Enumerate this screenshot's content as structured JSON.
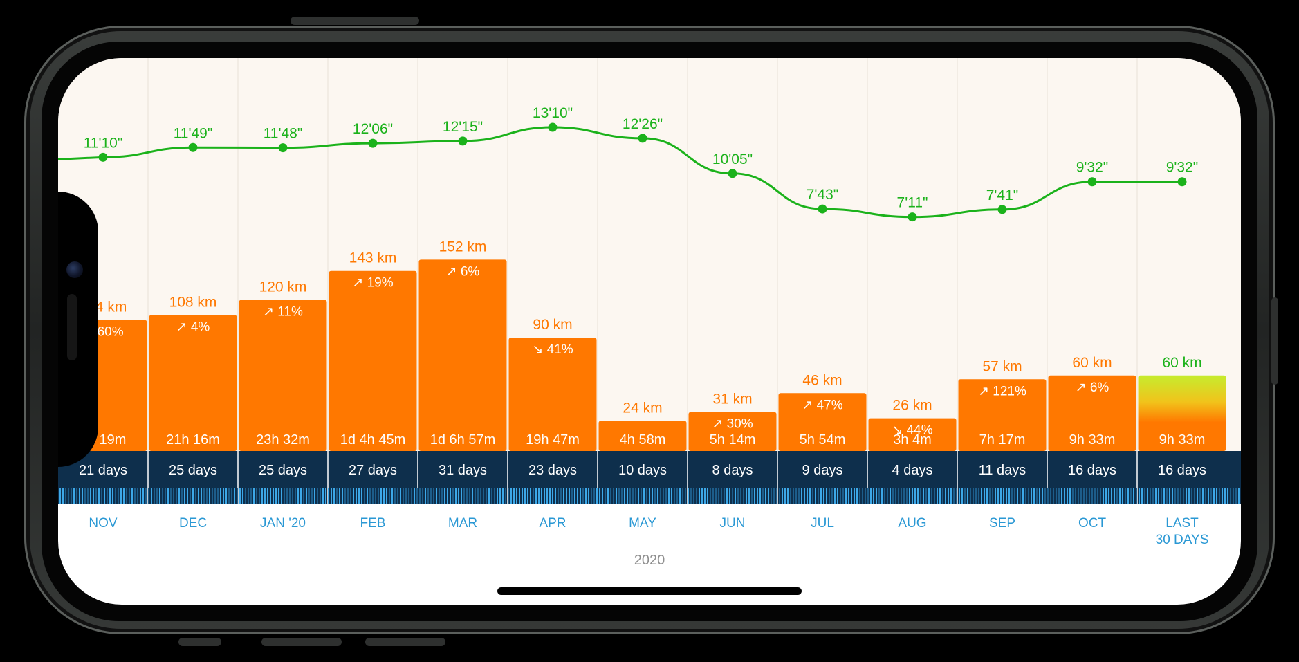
{
  "chart_data": {
    "type": "bar",
    "categories": [
      "NOV",
      "DEC",
      "JAN '20",
      "FEB",
      "MAR",
      "APR",
      "MAY",
      "JUN",
      "JUL",
      "AUG",
      "SEP",
      "OCT",
      "LAST 30 DAYS"
    ],
    "category_lines": [
      [
        "NOV"
      ],
      [
        "DEC"
      ],
      [
        "JAN '20"
      ],
      [
        "FEB"
      ],
      [
        "MAR"
      ],
      [
        "APR"
      ],
      [
        "MAY"
      ],
      [
        "JUN"
      ],
      [
        "JUL"
      ],
      [
        "AUG"
      ],
      [
        "SEP"
      ],
      [
        "OCT"
      ],
      [
        "LAST",
        "30 DAYS"
      ]
    ],
    "distance_km": [
      104,
      108,
      120,
      143,
      152,
      90,
      24,
      31,
      46,
      26,
      57,
      60,
      60
    ],
    "distance_labels": [
      "104 km",
      "108 km",
      "120 km",
      "143 km",
      "152 km",
      "90 km",
      "24 km",
      "31 km",
      "46 km",
      "26 km",
      "57 km",
      "60 km",
      "60 km"
    ],
    "change_labels": [
      "↗ 60%",
      "↗ 4%",
      "↗ 11%",
      "↗ 19%",
      "↗ 6%",
      "↘ 41%",
      "",
      "↗ 30%",
      "↗ 47%",
      "↘ 44%",
      "↗ 121%",
      "↗ 6%",
      ""
    ],
    "durations": [
      "9h 19m",
      "21h 16m",
      "23h 32m",
      "1d 4h 45m",
      "1d 6h 57m",
      "19h 47m",
      "4h 58m",
      "5h 14m",
      "5h 54m",
      "3h 4m",
      "7h 17m",
      "9h 33m",
      "9h 33m"
    ],
    "active_days": [
      "21 days",
      "25 days",
      "25 days",
      "27 days",
      "31 days",
      "23 days",
      "10 days",
      "8 days",
      "9 days",
      "4 days",
      "11 days",
      "16 days",
      "16 days"
    ],
    "pace_labels": [
      "11'10\"",
      "11'49\"",
      "11'48\"",
      "12'06\"",
      "12'15\"",
      "13'10\"",
      "12'26\"",
      "10'05\"",
      "7'43\"",
      "7'11\"",
      "7'41\"",
      "9'32\"",
      "9'32\""
    ],
    "pace_seconds": [
      670,
      709,
      708,
      726,
      735,
      790,
      746,
      605,
      463,
      431,
      461,
      572,
      572
    ],
    "year_label": "2020",
    "colors": {
      "bar": "#FF7800",
      "bar_highlight_top": "#C6EC2E",
      "pace_line": "#1BB21B",
      "days_band": "#0E2F4C",
      "month_label": "#2A98D4",
      "chart_bg": "#FCF7F1",
      "year_label": "#8E8E8E"
    }
  }
}
